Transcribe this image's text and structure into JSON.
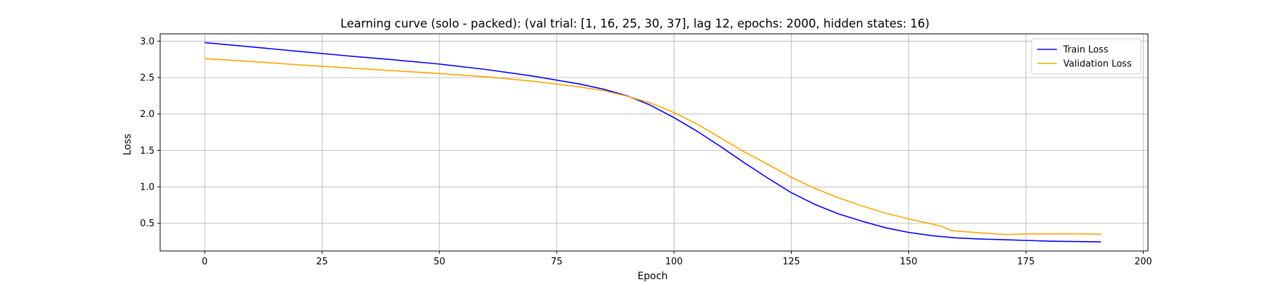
{
  "chart_data": {
    "type": "line",
    "title": "Learning curve (solo - packed): (val trial: [1, 16, 25, 30, 37], lag 12, epochs: 2000, hidden states: 16)",
    "xlabel": "Epoch",
    "ylabel": "Loss",
    "xlim": [
      -9.5,
      201
    ],
    "ylim": [
      0.12,
      3.1
    ],
    "xticks": [
      0,
      25,
      50,
      75,
      100,
      125,
      150,
      175,
      200
    ],
    "yticks": [
      0.5,
      1.0,
      1.5,
      2.0,
      2.5,
      3.0
    ],
    "xtick_labels": [
      "0",
      "25",
      "50",
      "75",
      "100",
      "125",
      "150",
      "175",
      "200"
    ],
    "ytick_labels": [
      "0.5",
      "1.0",
      "1.5",
      "2.0",
      "2.5",
      "3.0"
    ],
    "grid": true,
    "legend_position": "top-right",
    "series": [
      {
        "name": "Train Loss",
        "color": "#0000ff",
        "x": [
          0,
          10,
          20,
          30,
          40,
          50,
          60,
          70,
          80,
          85,
          90,
          95,
          100,
          105,
          110,
          115,
          120,
          125,
          130,
          135,
          140,
          145,
          150,
          155,
          160,
          165,
          170,
          175,
          180,
          185,
          191
        ],
        "y": [
          2.98,
          2.92,
          2.86,
          2.8,
          2.745,
          2.685,
          2.61,
          2.52,
          2.41,
          2.34,
          2.25,
          2.12,
          1.95,
          1.76,
          1.55,
          1.33,
          1.12,
          0.92,
          0.76,
          0.63,
          0.53,
          0.44,
          0.375,
          0.33,
          0.3,
          0.285,
          0.275,
          0.265,
          0.255,
          0.25,
          0.245
        ]
      },
      {
        "name": "Validation Loss",
        "color": "#ffa500",
        "x": [
          0,
          10,
          20,
          30,
          40,
          50,
          60,
          70,
          80,
          85,
          90,
          95,
          100,
          105,
          110,
          115,
          120,
          125,
          130,
          135,
          140,
          145,
          150,
          155,
          157,
          159,
          165,
          171,
          175,
          180,
          185,
          191
        ],
        "y": [
          2.76,
          2.72,
          2.675,
          2.635,
          2.595,
          2.555,
          2.51,
          2.45,
          2.37,
          2.32,
          2.245,
          2.15,
          2.02,
          1.86,
          1.67,
          1.48,
          1.31,
          1.13,
          0.98,
          0.85,
          0.74,
          0.64,
          0.56,
          0.49,
          0.46,
          0.4,
          0.37,
          0.345,
          0.355,
          0.355,
          0.355,
          0.35
        ]
      }
    ]
  }
}
